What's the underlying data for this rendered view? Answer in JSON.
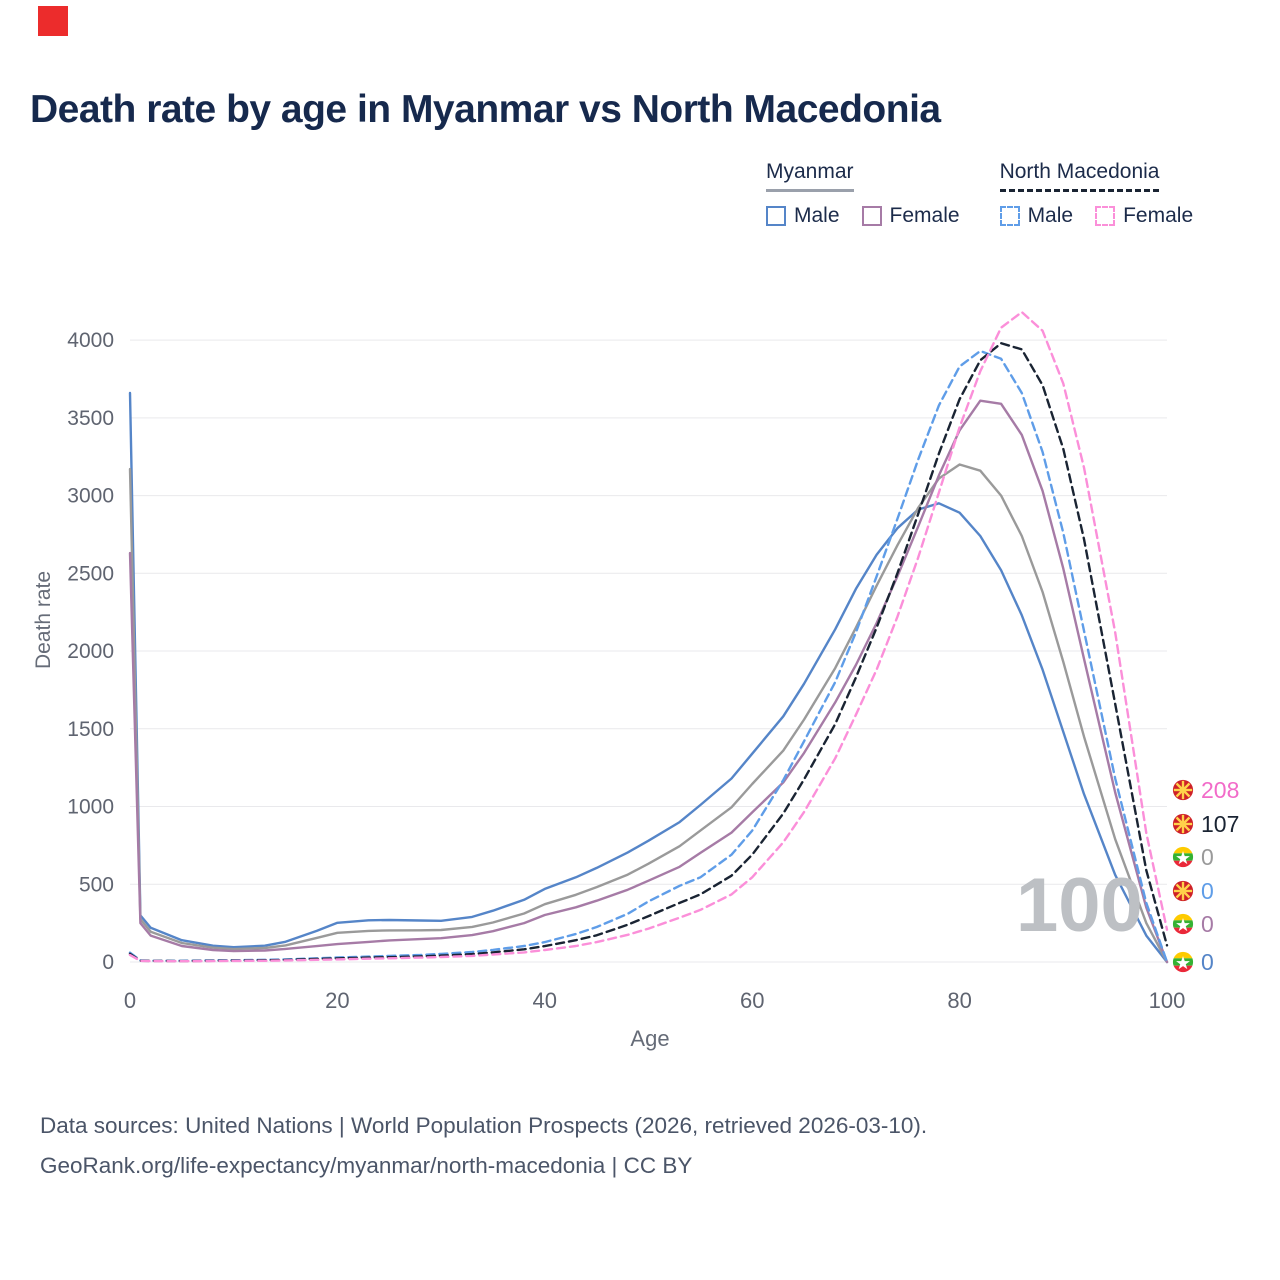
{
  "page": {
    "watermark": "100",
    "footer_line1": "Data sources: United Nations | World Population Prospects (2026, retrieved 2026-03-10).",
    "footer_line2": "GeoRank.org/life-expectancy/myanmar/north-macedonia | CC BY"
  },
  "legend": {
    "groups": [
      {
        "label": "Myanmar",
        "style": "solid",
        "items": [
          {
            "label": "Male",
            "color": "#5585c8"
          },
          {
            "label": "Female",
            "color": "#a67ba6"
          }
        ]
      },
      {
        "label": "North Macedonia",
        "style": "dashed",
        "items": [
          {
            "label": "Male",
            "color": "#5f9de8"
          },
          {
            "label": "Female",
            "color": "#fb8fd9"
          }
        ]
      }
    ]
  },
  "colors": {
    "logo_red": "#ec2c2c",
    "title_navy": "#16294d",
    "grid": "#e9e9ec",
    "myanmar_male": "#5585c8",
    "myanmar_female": "#a67ba6",
    "myanmar_total": "#9a9a9a",
    "north_macedonia_male": "#5f9de8",
    "north_macedonia_female": "#fb8fd9",
    "north_macedonia_total": "#1a2433"
  },
  "chart_data": {
    "type": "line",
    "title": "Death rate by age in Myanmar vs North Macedonia",
    "xlabel": "Age",
    "ylabel": "Death rate",
    "xlim": [
      0,
      100
    ],
    "ylim": [
      0,
      4200
    ],
    "xticks": [
      0,
      20,
      40,
      60,
      80,
      100
    ],
    "yticks": [
      0,
      500,
      1000,
      1500,
      2000,
      2500,
      3000,
      3500,
      4000
    ],
    "grid": "horizontal",
    "legend_position": "top-right",
    "x": [
      0,
      1,
      2,
      5,
      8,
      10,
      13,
      15,
      18,
      20,
      23,
      25,
      28,
      30,
      33,
      35,
      38,
      40,
      43,
      45,
      48,
      50,
      53,
      55,
      58,
      60,
      63,
      65,
      68,
      70,
      72,
      74,
      76,
      78,
      80,
      82,
      84,
      86,
      88,
      90,
      92,
      95,
      98,
      100
    ],
    "series": [
      {
        "name": "Myanmar Male",
        "country": "Myanmar",
        "color": "#5585c8",
        "dash": "solid",
        "values": [
          3660,
          300,
          220,
          140,
          105,
          95,
          105,
          130,
          200,
          252,
          268,
          270,
          267,
          265,
          290,
          330,
          400,
          470,
          545,
          605,
          705,
          780,
          900,
          1010,
          1180,
          1340,
          1580,
          1790,
          2140,
          2400,
          2620,
          2790,
          2910,
          2950,
          2890,
          2740,
          2520,
          2230,
          1880,
          1480,
          1080,
          560,
          170,
          0
        ]
      },
      {
        "name": "Myanmar",
        "country": "Myanmar",
        "color": "#9a9a9a",
        "dash": "solid",
        "values": [
          3170,
          275,
          195,
          122,
          92,
          83,
          90,
          107,
          155,
          188,
          200,
          203,
          204,
          206,
          226,
          254,
          312,
          372,
          432,
          482,
          562,
          632,
          745,
          845,
          995,
          1145,
          1360,
          1560,
          1890,
          2150,
          2420,
          2680,
          2920,
          3110,
          3200,
          3160,
          3000,
          2740,
          2380,
          1930,
          1450,
          790,
          250,
          0
        ]
      },
      {
        "name": "Myanmar Female",
        "country": "Myanmar",
        "color": "#a67ba6",
        "dash": "solid",
        "values": [
          2630,
          250,
          170,
          103,
          77,
          70,
          74,
          84,
          102,
          115,
          129,
          139,
          147,
          153,
          173,
          198,
          250,
          302,
          352,
          394,
          465,
          523,
          612,
          702,
          832,
          962,
          1155,
          1345,
          1670,
          1910,
          2180,
          2480,
          2800,
          3130,
          3420,
          3610,
          3590,
          3390,
          3030,
          2530,
          1950,
          1090,
          350,
          0
        ]
      },
      {
        "name": "North Macedonia Male",
        "country": "North Macedonia",
        "color": "#5f9de8",
        "dash": "dashed",
        "values": [
          60,
          10,
          8,
          8,
          10,
          11,
          14,
          17,
          24,
          29,
          35,
          39,
          45,
          52,
          64,
          78,
          103,
          128,
          180,
          225,
          310,
          390,
          490,
          545,
          690,
          845,
          1170,
          1420,
          1800,
          2120,
          2480,
          2850,
          3230,
          3580,
          3830,
          3930,
          3880,
          3660,
          3280,
          2760,
          2130,
          1180,
          380,
          0
        ]
      },
      {
        "name": "North Macedonia",
        "country": "North Macedonia",
        "color": "#1a2433",
        "dash": "dashed",
        "values": [
          52,
          8,
          7,
          6,
          8,
          9,
          11,
          13,
          19,
          23,
          28,
          31,
          36,
          41,
          51,
          62,
          82,
          102,
          140,
          172,
          240,
          295,
          380,
          435,
          555,
          690,
          955,
          1175,
          1530,
          1830,
          2150,
          2500,
          2880,
          3270,
          3620,
          3870,
          3980,
          3940,
          3710,
          3300,
          2720,
          1660,
          590,
          107
        ]
      },
      {
        "name": "North Macedonia Female",
        "country": "North Macedonia",
        "color": "#fb8fd9",
        "dash": "dashed",
        "values": [
          45,
          7,
          6,
          5,
          6,
          7,
          8,
          10,
          14,
          17,
          21,
          24,
          28,
          32,
          39,
          48,
          62,
          77,
          103,
          128,
          175,
          215,
          285,
          335,
          435,
          545,
          770,
          965,
          1310,
          1590,
          1880,
          2220,
          2600,
          3020,
          3440,
          3800,
          4080,
          4180,
          4060,
          3720,
          3180,
          2120,
          830,
          208
        ]
      }
    ],
    "end_labels": [
      {
        "flag": "north-macedonia",
        "value": "208",
        "color": "#f26bc9"
      },
      {
        "flag": "north-macedonia",
        "value": "107",
        "color": "#1a2433"
      },
      {
        "flag": "myanmar",
        "value": "0",
        "color": "#9a9a9a"
      },
      {
        "flag": "north-macedonia",
        "value": "0",
        "color": "#5f9de8"
      },
      {
        "flag": "myanmar",
        "value": "0",
        "color": "#a67ba6"
      },
      {
        "flag": "myanmar",
        "value": "0",
        "color": "#5585c8"
      }
    ]
  }
}
